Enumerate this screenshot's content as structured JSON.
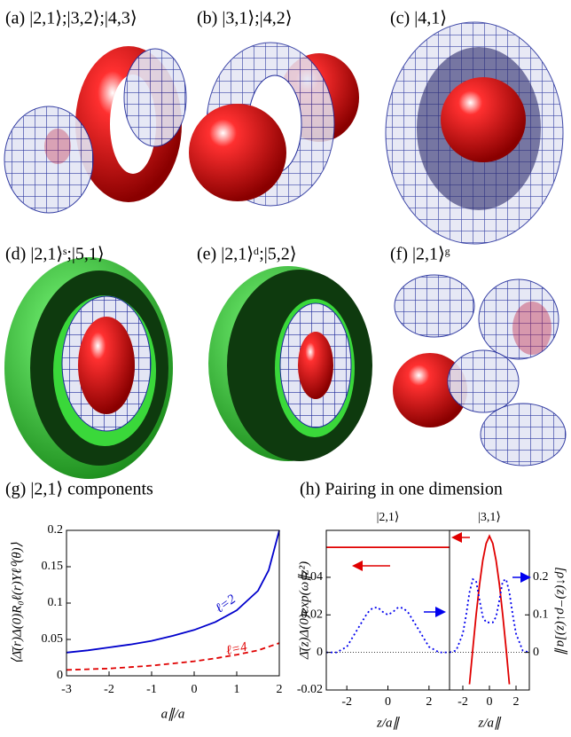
{
  "panels": [
    {
      "label": "(a) |2,1⟩;|3,2⟩;|4,3⟩"
    },
    {
      "label": "(b) |3,1⟩;|4,2⟩"
    },
    {
      "label": "(c) |4,1⟩"
    },
    {
      "label": "(d) |2,1⟩ˢ;|5,1⟩"
    },
    {
      "label": "(e) |2,1⟩ᵈ;|5,2⟩"
    },
    {
      "label": "(f) |2,1⟩ᵍ"
    }
  ],
  "chart_data": [
    {
      "type": "line",
      "title": "(g) |2,1⟩ components",
      "xlabel": "a∥/a",
      "ylabel": "⟨Δ̄(r)Δ(0)R₀ℓ(r)Yℓ⁰(θ)⟩",
      "x": [
        -3,
        -2.5,
        -2,
        -1.5,
        -1,
        -0.5,
        0,
        0.5,
        1,
        1.5,
        1.75,
        2
      ],
      "xlim": [
        -3,
        2
      ],
      "xticks": [
        -3,
        -2,
        -1,
        0,
        1,
        2
      ],
      "ylim": [
        0,
        0.2
      ],
      "yticks": [
        0,
        0.05,
        0.1,
        0.15,
        0.2
      ],
      "series": [
        {
          "name": "ℓ=2",
          "color": "#0000cc",
          "dash": "solid",
          "values": [
            0.032,
            0.035,
            0.039,
            0.043,
            0.048,
            0.055,
            0.063,
            0.074,
            0.09,
            0.117,
            0.145,
            0.2
          ]
        },
        {
          "name": "ℓ=4",
          "color": "#e00000",
          "dash": "dashed",
          "values": [
            0.008,
            0.009,
            0.01,
            0.012,
            0.014,
            0.017,
            0.02,
            0.024,
            0.029,
            0.035,
            0.04,
            0.045
          ]
        }
      ]
    },
    {
      "type": "line",
      "title": "(h) Pairing in one dimension",
      "ylabel": "Δ̄(z)Δ(0)exp(ω∥z²)",
      "y2label": "[ρ↑(z)−ρ↓(z)]a∥",
      "ylim": [
        -0.02,
        0.065
      ],
      "yticks": [
        -0.02,
        0,
        0.02,
        0.04
      ],
      "y2lim": [
        -0.1,
        0.325
      ],
      "y2ticks": [
        0,
        0.1,
        0.2
      ],
      "subplots": [
        {
          "subtitle": "|2,1⟩",
          "xlabel": "z/a∥",
          "xlim": [
            -3,
            3
          ],
          "xticks": [
            -2,
            0,
            2
          ],
          "x": [
            -3,
            -2.5,
            -2,
            -1.5,
            -1,
            -0.75,
            -0.5,
            -0.25,
            0,
            0.25,
            0.5,
            0.75,
            1,
            1.5,
            2,
            2.5,
            3
          ],
          "series": [
            {
              "color": "#e00000",
              "dash": "solid",
              "values": [
                0.056,
                0.056,
                0.056,
                0.056,
                0.056,
                0.056,
                0.056,
                0.056,
                0.056,
                0.056,
                0.056,
                0.056,
                0.056,
                0.056,
                0.056,
                0.056,
                0.056
              ]
            },
            {
              "color": "#0000ee",
              "dash": "dotted",
              "axis": "y2",
              "values": [
                0,
                0,
                0.015,
                0.06,
                0.105,
                0.118,
                0.12,
                0.108,
                0.1,
                0.108,
                0.12,
                0.118,
                0.105,
                0.06,
                0.015,
                0,
                0
              ]
            }
          ]
        },
        {
          "subtitle": "|3,1⟩",
          "xlabel": "z/a∥",
          "xlim": [
            -3,
            3
          ],
          "xticks": [
            -2,
            0,
            2
          ],
          "x": [
            -3,
            -2.5,
            -2,
            -1.75,
            -1.5,
            -1.25,
            -1,
            -0.75,
            -0.5,
            -0.25,
            0,
            0.25,
            0.5,
            0.75,
            1,
            1.25,
            1.5,
            1.75,
            2,
            2.5,
            3
          ],
          "series": [
            {
              "color": "#e00000",
              "dash": "solid",
              "values": [
                null,
                null,
                null,
                null,
                -0.017,
                0.002,
                0.02,
                0.036,
                0.049,
                0.058,
                0.062,
                0.058,
                0.049,
                0.036,
                0.02,
                0.002,
                -0.017,
                null,
                null,
                null,
                null
              ]
            },
            {
              "color": "#0000ee",
              "dash": "dotted",
              "axis": "y2",
              "values": [
                0,
                0.005,
                0.05,
                0.1,
                0.16,
                0.195,
                0.19,
                0.14,
                0.095,
                0.08,
                0.08,
                0.08,
                0.095,
                0.14,
                0.19,
                0.195,
                0.16,
                0.1,
                0.05,
                0.005,
                0
              ]
            }
          ]
        }
      ]
    }
  ]
}
